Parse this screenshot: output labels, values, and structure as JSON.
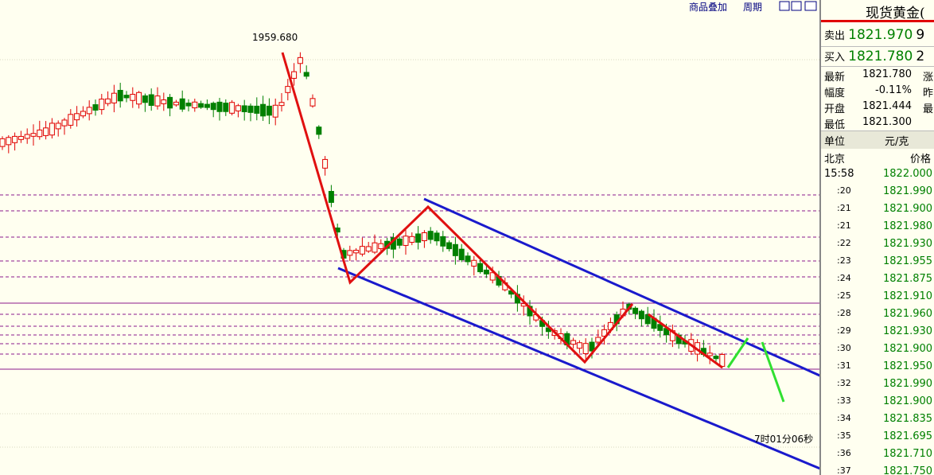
{
  "toolbar": {
    "overlay": "商品叠加",
    "period": "周期"
  },
  "chart": {
    "max_label": "1959.680",
    "timer": "7时01分06秒"
  },
  "quote": {
    "title": "现货黄金(",
    "sell": {
      "label": "卖出",
      "price": "1821.970",
      "volume": "9"
    },
    "buy": {
      "label": "买入",
      "price": "1821.780",
      "volume": "2"
    },
    "stats": [
      [
        "最新",
        "1821.780",
        "涨"
      ],
      [
        "幅度",
        "-0.11%",
        "昨"
      ],
      [
        "开盘",
        "1821.444",
        "最"
      ],
      [
        "最低",
        "1821.300",
        ""
      ]
    ],
    "unit": {
      "label": "单位",
      "value": "元/克"
    },
    "ticks_header": {
      "time": "北京",
      "price": "价格"
    },
    "ticks": [
      [
        "15:58",
        "1822.000"
      ],
      [
        ":20",
        "1821.990"
      ],
      [
        ":21",
        "1821.900"
      ],
      [
        ":21",
        "1821.980"
      ],
      [
        ":22",
        "1821.930"
      ],
      [
        ":23",
        "1821.955"
      ],
      [
        ":24",
        "1821.875"
      ],
      [
        ":25",
        "1821.910"
      ],
      [
        ":28",
        "1821.960"
      ],
      [
        ":29",
        "1821.930"
      ],
      [
        ":30",
        "1821.900"
      ],
      [
        ":31",
        "1821.950"
      ],
      [
        ":32",
        "1821.990"
      ],
      [
        ":33",
        "1821.900"
      ],
      [
        ":34",
        "1821.835"
      ],
      [
        ":35",
        "1821.695"
      ],
      [
        ":36",
        "1821.710"
      ],
      [
        ":37",
        "1821.750"
      ]
    ]
  }
}
